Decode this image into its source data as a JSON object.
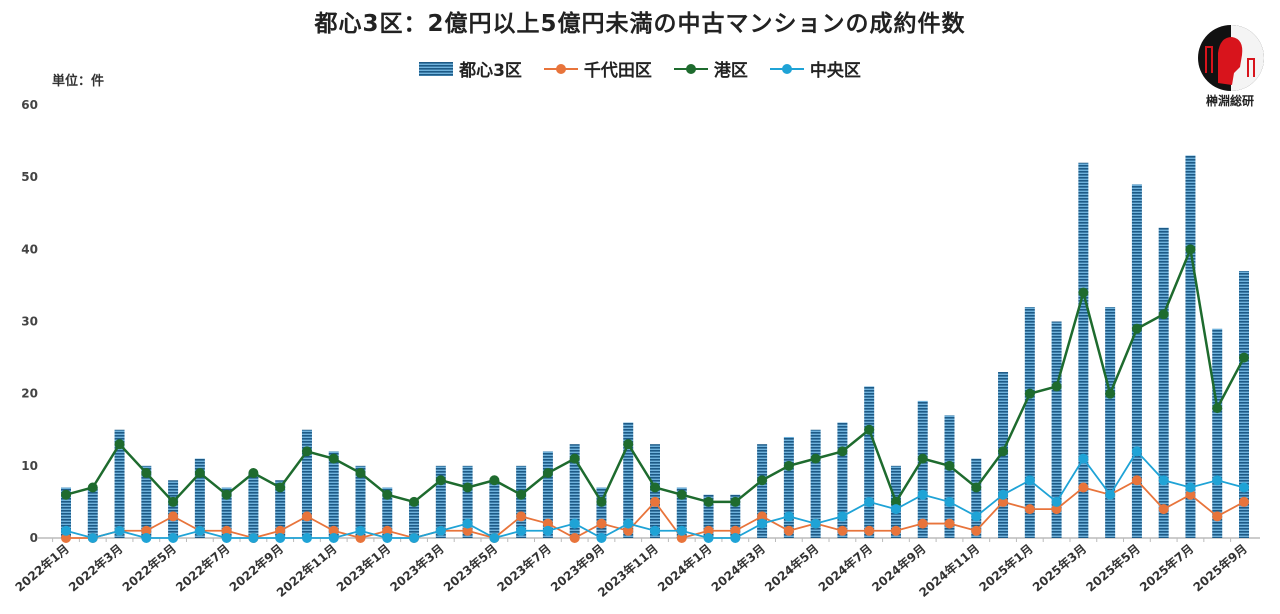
{
  "chart_data": {
    "type": "bar+line",
    "title": "都心3区：2億円以上5億円未満の中古マンションの成約件数",
    "unit_label": "単位：件",
    "ylim": [
      0,
      60
    ],
    "yticks": [
      0,
      10,
      20,
      30,
      40,
      50,
      60
    ],
    "grid": false,
    "legend_position": "top",
    "categories": [
      "2022年1月",
      "2022年2月",
      "2022年3月",
      "2022年4月",
      "2022年5月",
      "2022年6月",
      "2022年7月",
      "2022年8月",
      "2022年9月",
      "2022年10月",
      "2022年11月",
      "2022年12月",
      "2023年1月",
      "2023年2月",
      "2023年3月",
      "2023年4月",
      "2023年5月",
      "2023年6月",
      "2023年7月",
      "2023年8月",
      "2023年9月",
      "2023年10月",
      "2023年11月",
      "2023年12月",
      "2024年1月",
      "2024年2月",
      "2024年3月",
      "2024年4月",
      "2024年5月",
      "2024年6月",
      "2024年7月",
      "2024年8月",
      "2024年9月",
      "2024年10月",
      "2024年11月",
      "2024年12月",
      "2025年1月",
      "2025年2月",
      "2025年3月",
      "2025年4月",
      "2025年5月",
      "2025年6月",
      "2025年7月",
      "2025年8月",
      "2025年9月"
    ],
    "xtick_labels_every": 2,
    "series": [
      {
        "name": "都心3区",
        "type": "bar",
        "color": "#2b6f9e",
        "values": [
          7,
          7,
          15,
          10,
          8,
          11,
          7,
          9,
          8,
          15,
          12,
          10,
          7,
          5,
          10,
          10,
          8,
          10,
          12,
          13,
          7,
          16,
          13,
          7,
          6,
          6,
          13,
          14,
          15,
          16,
          21,
          10,
          19,
          17,
          11,
          23,
          32,
          30,
          52,
          32,
          49,
          43,
          53,
          29,
          37
        ]
      },
      {
        "name": "千代田区",
        "type": "line",
        "color": "#e8743b",
        "values": [
          0,
          0,
          1,
          1,
          3,
          1,
          1,
          0,
          1,
          3,
          1,
          0,
          1,
          0,
          1,
          1,
          0,
          3,
          2,
          0,
          2,
          1,
          5,
          0,
          1,
          1,
          3,
          1,
          2,
          1,
          1,
          1,
          2,
          2,
          1,
          5,
          4,
          4,
          7,
          6,
          8,
          4,
          6,
          3,
          5
        ]
      },
      {
        "name": "港区",
        "type": "line",
        "color": "#1e6b2e",
        "values": [
          6,
          7,
          13,
          9,
          5,
          9,
          6,
          9,
          7,
          12,
          11,
          9,
          6,
          5,
          8,
          7,
          8,
          6,
          9,
          11,
          5,
          13,
          7,
          6,
          5,
          5,
          8,
          10,
          11,
          12,
          15,
          5,
          11,
          10,
          7,
          12,
          20,
          21,
          34,
          20,
          29,
          31,
          40,
          18,
          25
        ]
      },
      {
        "name": "中央区",
        "type": "line",
        "color": "#1fa3d6",
        "values": [
          1,
          0,
          1,
          0,
          0,
          1,
          0,
          0,
          0,
          0,
          0,
          1,
          0,
          0,
          1,
          2,
          0,
          1,
          1,
          2,
          0,
          2,
          1,
          1,
          0,
          0,
          2,
          3,
          2,
          3,
          5,
          4,
          6,
          5,
          3,
          6,
          8,
          5,
          11,
          6,
          12,
          8,
          7,
          8,
          7
        ]
      }
    ]
  },
  "logo": {
    "text": "榊淵総研"
  }
}
